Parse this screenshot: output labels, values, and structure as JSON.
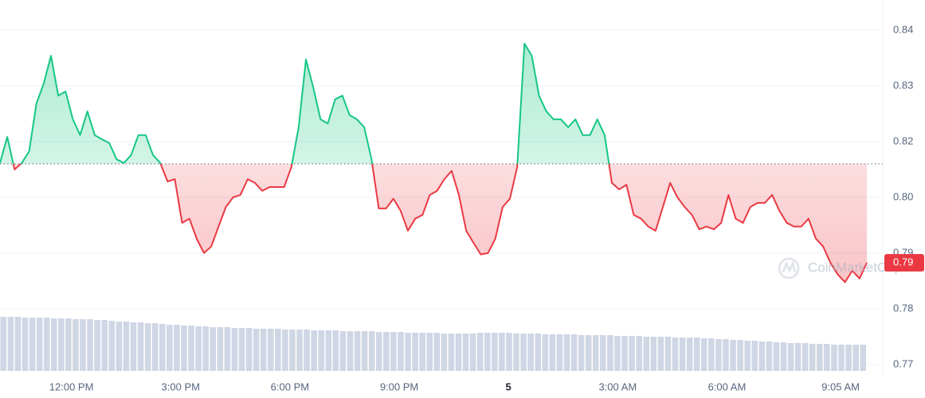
{
  "chart_data": {
    "type": "line",
    "values": [
      0.8109,
      0.8165,
      0.8095,
      0.8109,
      0.8134,
      0.8237,
      0.828,
      0.834,
      0.8254,
      0.8263,
      0.8203,
      0.8169,
      0.822,
      0.8169,
      0.816,
      0.8152,
      0.8117,
      0.8109,
      0.8126,
      0.8169,
      0.8169,
      0.8126,
      0.8109,
      0.8069,
      0.8074,
      0.798,
      0.7989,
      0.7946,
      0.7915,
      0.7929,
      0.7972,
      0.8014,
      0.8035,
      0.804,
      0.8074,
      0.8066,
      0.8049,
      0.8057,
      0.8057,
      0.8057,
      0.81,
      0.8186,
      0.8332,
      0.8272,
      0.8203,
      0.8194,
      0.8246,
      0.8254,
      0.8212,
      0.8203,
      0.8186,
      0.8117,
      0.8011,
      0.8011,
      0.8032,
      0.8006,
      0.7963,
      0.7989,
      0.7997,
      0.804,
      0.8049,
      0.8074,
      0.8092,
      0.804,
      0.7963,
      0.7937,
      0.7912,
      0.7915,
      0.7946,
      0.8014,
      0.8032,
      0.81,
      0.8366,
      0.834,
      0.8254,
      0.822,
      0.8203,
      0.8203,
      0.8186,
      0.8203,
      0.8169,
      0.8169,
      0.8203,
      0.8169,
      0.8066,
      0.8052,
      0.8062,
      0.7997,
      0.7989,
      0.7972,
      0.7963,
      0.8014,
      0.8066,
      0.8035,
      0.8014,
      0.7997,
      0.7966,
      0.7972,
      0.7966,
      0.798,
      0.804,
      0.7989,
      0.798,
      0.8014,
      0.8023,
      0.8023,
      0.804,
      0.8006,
      0.798,
      0.7972,
      0.7972,
      0.7989,
      0.7946,
      0.7929,
      0.7894,
      0.7869,
      0.7852,
      0.7877,
      0.786,
      0.7894
    ],
    "volume": [
      68,
      68,
      68,
      67,
      67,
      67,
      67,
      66,
      66,
      66,
      65,
      65,
      65,
      64,
      64,
      63,
      62,
      62,
      61,
      61,
      60,
      60,
      59,
      58,
      58,
      57,
      57,
      56,
      56,
      55,
      55,
      55,
      54,
      54,
      54,
      53,
      53,
      53,
      53,
      52,
      52,
      52,
      52,
      51,
      51,
      51,
      51,
      50,
      50,
      50,
      50,
      50,
      49,
      49,
      49,
      49,
      48,
      48,
      48,
      48,
      48,
      47,
      47,
      47,
      47,
      47,
      48,
      48,
      48,
      48,
      48,
      47,
      47,
      47,
      47,
      46,
      46,
      46,
      46,
      46,
      45,
      45,
      45,
      45,
      45,
      44,
      44,
      44,
      44,
      43,
      43,
      43,
      43,
      42,
      42,
      42,
      42,
      41,
      41,
      40,
      40,
      39,
      39,
      38,
      38,
      37,
      37,
      36,
      36,
      35,
      35,
      35,
      34,
      34,
      34,
      33,
      33,
      33,
      33,
      33
    ],
    "baseline": 0.8107,
    "up_color": "#16c784",
    "down_color": "#ea3943",
    "volume_color": "#cfd6e4",
    "xlim": [
      0,
      119
    ],
    "xticks": [
      {
        "value": 9.8,
        "label": "12:00 PM"
      },
      {
        "value": 24.8,
        "label": "3:00 PM"
      },
      {
        "value": 39.8,
        "label": "6:00 PM"
      },
      {
        "value": 54.8,
        "label": "9:00 PM"
      },
      {
        "value": 69.8,
        "label": "5"
      },
      {
        "value": 84.8,
        "label": "3:00 AM"
      },
      {
        "value": 99.8,
        "label": "6:00 AM"
      },
      {
        "value": 115.4,
        "label": "9:05 AM"
      }
    ],
    "ylim": [
      0.7661,
      0.846
    ],
    "yticks": [
      {
        "value": 0.8395,
        "label": "0.84"
      },
      {
        "value": 0.8275,
        "label": "0.83"
      },
      {
        "value": 0.8155,
        "label": "0.82"
      },
      {
        "value": 0.8035,
        "label": "0.80"
      },
      {
        "value": 0.7915,
        "label": "0.79"
      },
      {
        "value": 0.7795,
        "label": "0.78"
      },
      {
        "value": 0.7675,
        "label": "0.77"
      }
    ],
    "grid": true,
    "current_label": "0.79",
    "watermark": "CoinMarketCap"
  }
}
